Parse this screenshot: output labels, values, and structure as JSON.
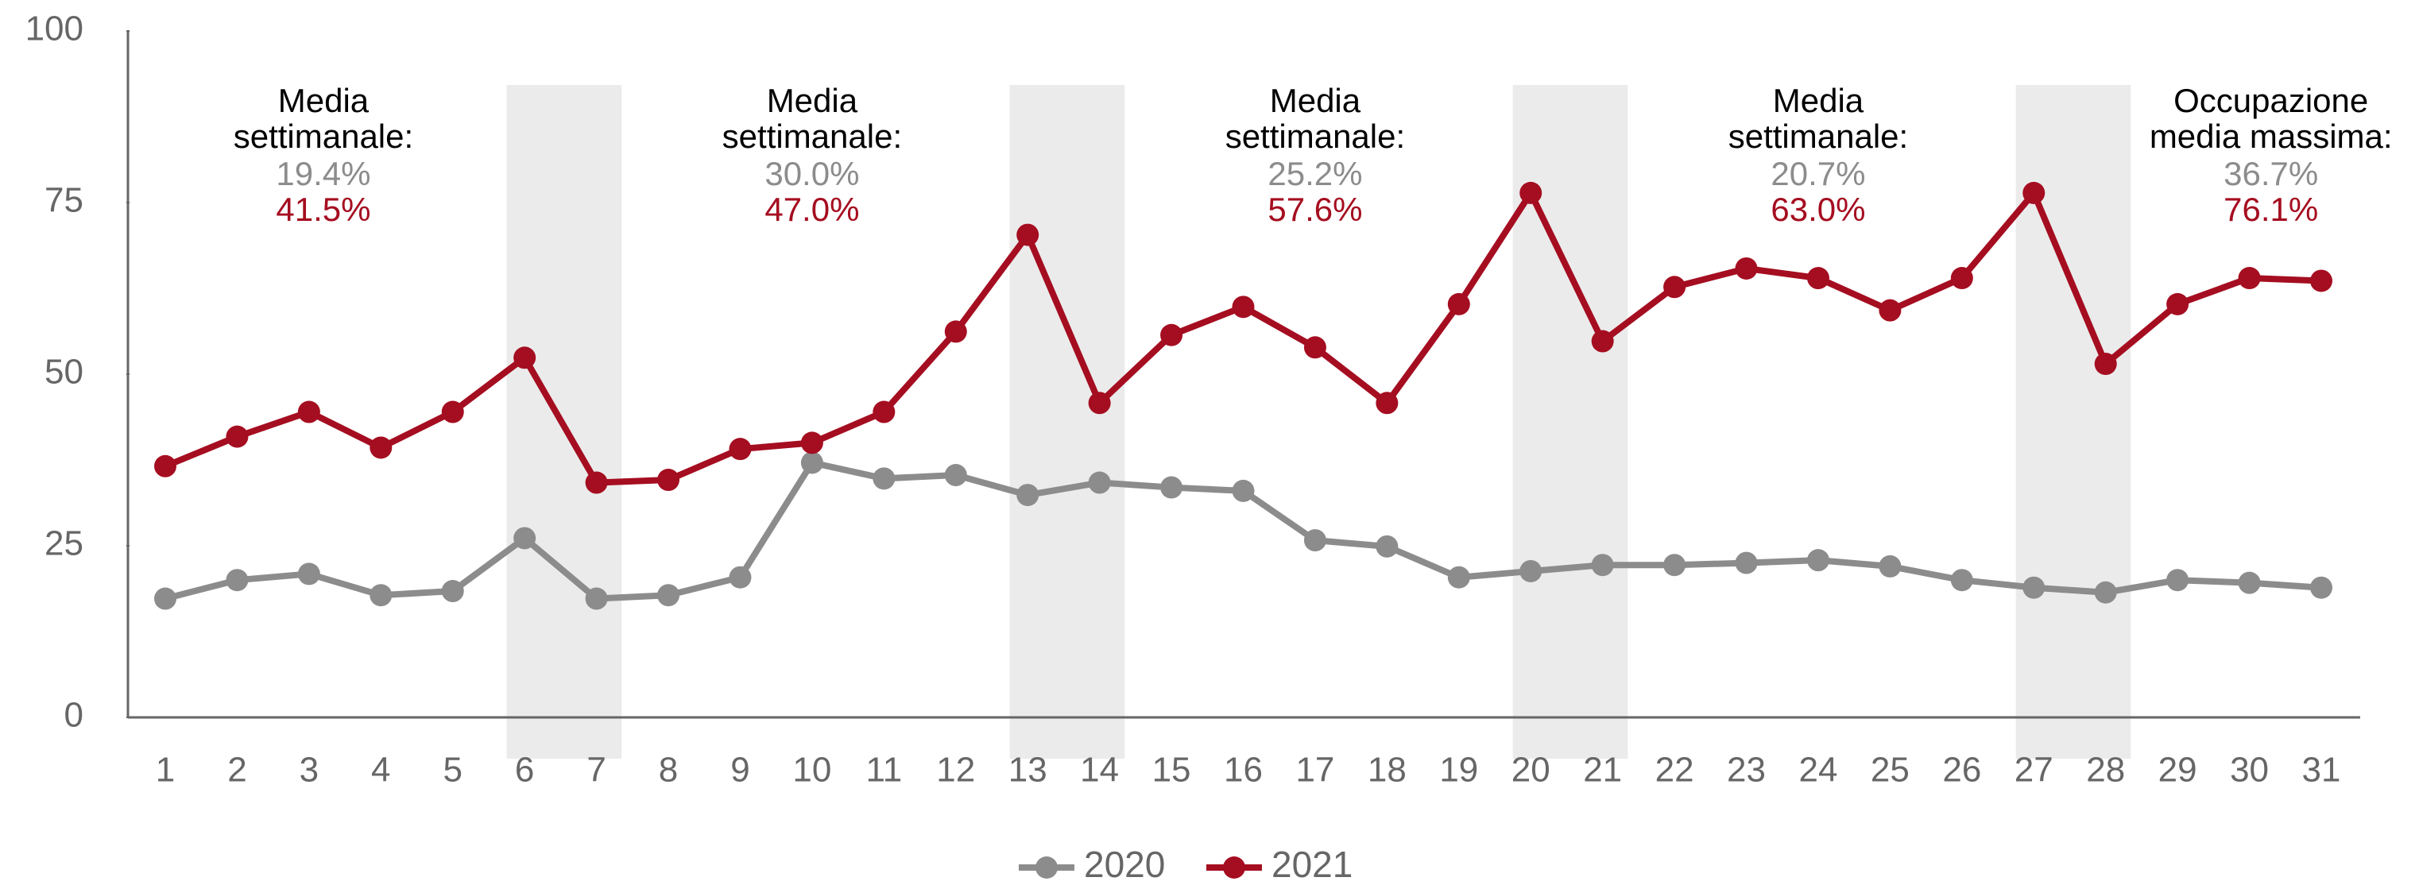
{
  "chart_data": {
    "type": "line",
    "categories": [
      "1",
      "2",
      "3",
      "4",
      "5",
      "6",
      "7",
      "8",
      "9",
      "10",
      "11",
      "12",
      "13",
      "14",
      "15",
      "16",
      "17",
      "18",
      "19",
      "20",
      "21",
      "22",
      "23",
      "24",
      "25",
      "26",
      "27",
      "28",
      "29",
      "30",
      "31"
    ],
    "series": [
      {
        "name": "2020",
        "color": "#8c8c8c",
        "values": [
          17.3,
          20.0,
          20.9,
          17.8,
          18.4,
          26.1,
          17.3,
          17.8,
          20.4,
          37.1,
          34.8,
          35.3,
          32.4,
          34.2,
          33.5,
          33.0,
          25.8,
          24.9,
          20.4,
          21.3,
          22.2,
          22.2,
          22.5,
          22.9,
          22.0,
          20.0,
          18.9,
          18.2,
          20.0,
          19.6,
          18.9
        ]
      },
      {
        "name": "2021",
        "color": "#a50d20",
        "values": [
          36.6,
          40.9,
          44.5,
          39.3,
          44.5,
          52.4,
          34.2,
          34.6,
          39.1,
          40.0,
          44.5,
          56.2,
          70.3,
          45.8,
          55.7,
          59.8,
          53.9,
          45.8,
          60.2,
          76.4,
          54.8,
          62.7,
          65.4,
          64.0,
          59.3,
          64.0,
          76.4,
          51.5,
          60.2,
          64.0,
          63.6
        ]
      }
    ],
    "ylim": [
      0,
      100
    ],
    "yticks": [
      0,
      25,
      50,
      75,
      100
    ],
    "highlight_bands": [
      [
        "6",
        "7"
      ],
      [
        "13",
        "14"
      ],
      [
        "20",
        "21"
      ],
      [
        "27",
        "28"
      ]
    ],
    "annotations": [
      {
        "lines": [
          "Media",
          "settimanale:"
        ],
        "values": [
          "19.4%",
          "41.5%"
        ]
      },
      {
        "lines": [
          "Media",
          "settimanale:"
        ],
        "values": [
          "30.0%",
          "47.0%"
        ]
      },
      {
        "lines": [
          "Media",
          "settimanale:"
        ],
        "values": [
          "25.2%",
          "57.6%"
        ]
      },
      {
        "lines": [
          "Media",
          "settimanale:"
        ],
        "values": [
          "20.7%",
          "63.0%"
        ]
      },
      {
        "lines": [
          "Occupazione",
          "media massima:"
        ],
        "values": [
          "36.7%",
          "76.1%"
        ]
      }
    ],
    "legend": "bottom"
  }
}
